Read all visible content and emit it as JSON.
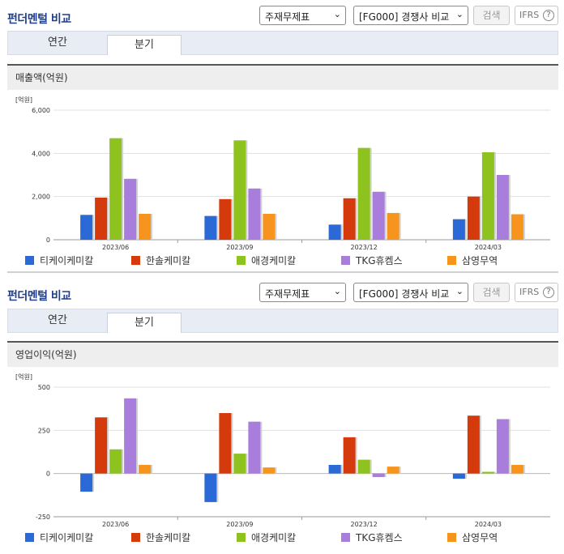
{
  "colors": {
    "series": [
      "#2b6ad6",
      "#d43a0c",
      "#8ec21f",
      "#a87ddb",
      "#f7941d"
    ],
    "title": "#1f3f8a"
  },
  "header1": {
    "title": "펀더멘털 비교",
    "select_statement": "주재무제표",
    "select_compare": "[FG000] 경쟁사 비교",
    "search_label": "검색",
    "ifrs_label": "IFRS",
    "help_label": "?"
  },
  "header2": {
    "title": "펀더멘털 비교",
    "select_statement": "주재무제표",
    "select_compare": "[FG000] 경쟁사 비교",
    "search_label": "검색",
    "ifrs_label": "IFRS",
    "help_label": "?"
  },
  "tabs1": [
    {
      "label": "연간"
    },
    {
      "label": "분기"
    }
  ],
  "tabs2": [
    {
      "label": "연간"
    },
    {
      "label": "분기"
    }
  ],
  "chart_data": [
    {
      "type": "bar",
      "title": "매출액(억원)",
      "unit": "[억원]",
      "categories": [
        "2023/06",
        "2023/09",
        "2023/12",
        "2024/03"
      ],
      "ylim": [
        0,
        6000
      ],
      "yticks": [
        "6,000",
        "4,000",
        "2,000",
        "0"
      ],
      "ytick_values": [
        6000,
        4000,
        2000,
        0
      ],
      "grid": true,
      "legend_position": "bottom",
      "series": [
        {
          "name": "티케이케미칼",
          "values": [
            1150,
            1100,
            700,
            950
          ]
        },
        {
          "name": "한솔케미칼",
          "values": [
            1950,
            1880,
            1920,
            2000
          ]
        },
        {
          "name": "애경케미칼",
          "values": [
            4700,
            4600,
            4250,
            4050
          ]
        },
        {
          "name": "TKG휴켐스",
          "values": [
            2820,
            2370,
            2220,
            3000
          ]
        },
        {
          "name": "삼영무역",
          "values": [
            1200,
            1200,
            1240,
            1180
          ]
        }
      ]
    },
    {
      "type": "bar",
      "title": "영업이익(억원)",
      "unit": "[억원]",
      "categories": [
        "2023/06",
        "2023/09",
        "2023/12",
        "2024/03"
      ],
      "ylim": [
        -250,
        500
      ],
      "yticks": [
        "500",
        "250",
        "0",
        "-250"
      ],
      "ytick_values": [
        500,
        250,
        0,
        -250
      ],
      "grid": true,
      "legend_position": "bottom",
      "series": [
        {
          "name": "티케이케미칼",
          "values": [
            -105,
            -165,
            50,
            -30
          ]
        },
        {
          "name": "한솔케미칼",
          "values": [
            325,
            350,
            210,
            335
          ]
        },
        {
          "name": "애경케미칼",
          "values": [
            140,
            115,
            80,
            10
          ]
        },
        {
          "name": "TKG휴켐스",
          "values": [
            435,
            300,
            -20,
            315
          ]
        },
        {
          "name": "삼영무역",
          "values": [
            50,
            35,
            40,
            50
          ]
        }
      ]
    }
  ]
}
